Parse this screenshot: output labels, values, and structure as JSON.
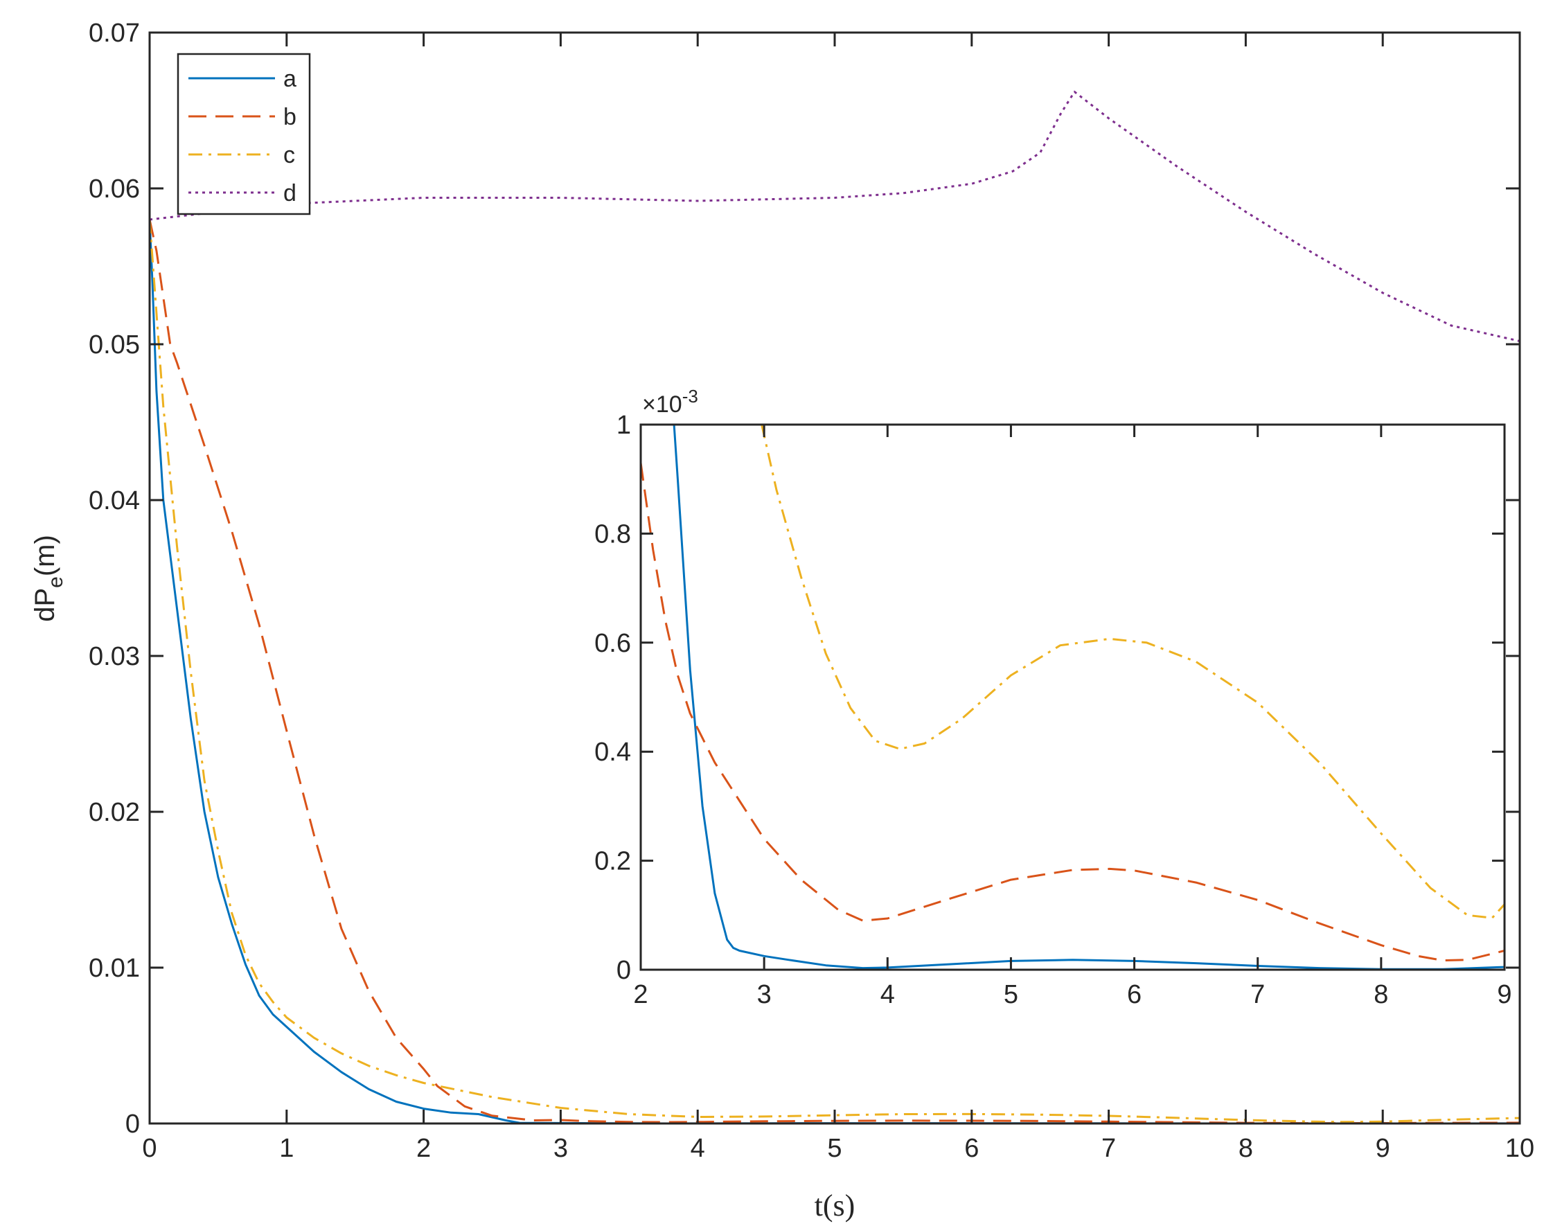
{
  "chart_data": {
    "type": "line",
    "xlabel": "t(s)",
    "ylabel_main": "dP",
    "ylabel_sub": "e",
    "ylabel_unit": "(m)",
    "xlim": [
      0,
      10
    ],
    "ylim": [
      0,
      0.07
    ],
    "xticks": [
      "0",
      "1",
      "2",
      "3",
      "4",
      "5",
      "6",
      "7",
      "8",
      "9",
      "10"
    ],
    "yticks": [
      "0",
      "0.01",
      "0.02",
      "0.03",
      "0.04",
      "0.05",
      "0.06",
      "0.07"
    ],
    "grid": false,
    "legend_position": "top-left",
    "series": [
      {
        "name": "a",
        "color": "#0072BD",
        "style": "solid",
        "x": [
          0,
          0.02,
          0.05,
          0.1,
          0.2,
          0.3,
          0.4,
          0.5,
          0.6,
          0.7,
          0.8,
          0.9,
          1.0,
          1.2,
          1.4,
          1.6,
          1.8,
          2.0,
          2.2,
          2.4,
          2.6,
          2.7,
          2.8,
          3.0,
          3.5,
          3.8,
          4.0,
          4.5,
          5.0,
          5.5,
          6.0,
          6.5,
          7.0,
          7.5,
          8.0,
          8.5,
          9.0,
          9.5,
          10
        ],
        "y": [
          0.058,
          0.054,
          0.047,
          0.04,
          0.033,
          0.026,
          0.02,
          0.0158,
          0.0128,
          0.0102,
          0.0082,
          0.007,
          0.0062,
          0.0046,
          0.0033,
          0.0022,
          0.0014,
          0.00095,
          0.0007,
          0.0006,
          0.0002,
          4e-05,
          3e-05,
          2.5e-05,
          1e-05,
          2e-06,
          5e-06,
          1.2e-05,
          1.6e-05,
          1.7e-05,
          1.6e-05,
          1.2e-05,
          8e-06,
          4e-06,
          1e-06,
          0.0,
          0.0,
          2e-06,
          5e-06
        ]
      },
      {
        "name": "b",
        "color": "#D95319",
        "style": "dashed",
        "x": [
          0,
          0.05,
          0.1,
          0.15,
          0.2,
          0.4,
          0.6,
          0.8,
          1.0,
          1.2,
          1.4,
          1.6,
          1.8,
          2.0,
          2.1,
          2.3,
          2.5,
          2.8,
          3.0,
          3.2,
          3.5,
          3.8,
          4.0,
          4.5,
          5.0,
          5.5,
          6.0,
          6.5,
          7.0,
          7.5,
          8.0,
          8.5,
          9.0,
          9.5,
          10
        ],
        "y": [
          0.058,
          0.056,
          0.053,
          0.05,
          0.0488,
          0.0435,
          0.038,
          0.032,
          0.0252,
          0.0185,
          0.0125,
          0.0085,
          0.0055,
          0.0035,
          0.0024,
          0.0011,
          0.0005,
          0.0002,
          0.00022,
          0.00015,
          0.0001,
          9e-05,
          0.0001,
          0.00014,
          0.00017,
          0.000183,
          0.00018,
          0.00016,
          0.00012,
          8e-05,
          4e-05,
          1.5e-05,
          2e-05,
          4e-05,
          5e-05
        ]
      },
      {
        "name": "c",
        "color": "#EDB120",
        "style": "dashdot",
        "x": [
          0,
          0.05,
          0.1,
          0.2,
          0.3,
          0.4,
          0.5,
          0.6,
          0.7,
          0.8,
          0.9,
          1.0,
          1.2,
          1.4,
          1.6,
          1.8,
          2.0,
          2.5,
          3.0,
          3.5,
          4.0,
          4.5,
          5.0,
          5.5,
          6.0,
          6.5,
          7.0,
          7.5,
          8.0,
          8.5,
          8.7,
          9.0,
          9.5,
          10
        ],
        "y": [
          0.058,
          0.052,
          0.046,
          0.037,
          0.029,
          0.022,
          0.0175,
          0.0135,
          0.0108,
          0.009,
          0.0078,
          0.0068,
          0.0055,
          0.0045,
          0.0037,
          0.0031,
          0.0026,
          0.0017,
          0.001,
          0.0006,
          0.00042,
          0.00045,
          0.00053,
          0.0006,
          0.000605,
          0.00057,
          0.00049,
          0.00036,
          0.00022,
          0.00012,
          0.0001,
          0.00012,
          0.00025,
          0.00035
        ]
      },
      {
        "name": "d",
        "color": "#7E2F8E",
        "style": "dotted",
        "x": [
          0,
          0.5,
          1,
          2,
          3,
          4,
          5,
          5.5,
          6,
          6.3,
          6.5,
          6.65,
          6.75,
          7.0,
          7.5,
          8.0,
          8.5,
          9.0,
          9.5,
          10
        ],
        "y": [
          0.058,
          0.0585,
          0.059,
          0.0594,
          0.0594,
          0.0592,
          0.0594,
          0.0597,
          0.0603,
          0.0611,
          0.0623,
          0.0648,
          0.0662,
          0.0645,
          0.0614,
          0.0585,
          0.0558,
          0.0533,
          0.0512,
          0.0502
        ]
      }
    ],
    "inset": {
      "xlim": [
        2,
        9
      ],
      "ylim": [
        0,
        1
      ],
      "multiplier": "×10",
      "multiplier_exp": "-3",
      "xticks": [
        "2",
        "3",
        "4",
        "5",
        "6",
        "7",
        "8",
        "9"
      ],
      "yticks": [
        "0",
        "0.2",
        "0.4",
        "0.6",
        "0.8",
        "1"
      ],
      "series": [
        {
          "name": "a",
          "color": "#0072BD",
          "style": "solid",
          "x": [
            2.27,
            2.3,
            2.4,
            2.5,
            2.6,
            2.7,
            2.75,
            2.8,
            3.0,
            3.2,
            3.5,
            3.8,
            4.0,
            4.5,
            5.0,
            5.5,
            6.0,
            6.5,
            7.0,
            7.5,
            8.0,
            8.5,
            9.0
          ],
          "y": [
            1.0,
            0.9,
            0.55,
            0.3,
            0.14,
            0.055,
            0.04,
            0.035,
            0.025,
            0.018,
            0.008,
            0.003,
            0.004,
            0.01,
            0.016,
            0.018,
            0.016,
            0.012,
            0.007,
            0.003,
            0.001,
            0.001,
            0.005
          ]
        },
        {
          "name": "b",
          "color": "#D95319",
          "style": "dashed",
          "x": [
            2.0,
            2.1,
            2.2,
            2.3,
            2.4,
            2.6,
            2.8,
            3.0,
            3.3,
            3.6,
            3.8,
            4.0,
            4.5,
            5.0,
            5.5,
            5.8,
            6.0,
            6.5,
            7.0,
            7.5,
            8.0,
            8.3,
            8.5,
            8.7,
            9.0
          ],
          "y": [
            0.93,
            0.77,
            0.64,
            0.54,
            0.47,
            0.38,
            0.31,
            0.24,
            0.165,
            0.11,
            0.09,
            0.094,
            0.13,
            0.165,
            0.183,
            0.185,
            0.182,
            0.16,
            0.128,
            0.085,
            0.045,
            0.025,
            0.017,
            0.018,
            0.035
          ]
        },
        {
          "name": "c",
          "color": "#EDB120",
          "style": "dashdot",
          "x": [
            2.98,
            3.1,
            3.3,
            3.5,
            3.7,
            3.9,
            4.1,
            4.3,
            4.6,
            5.0,
            5.4,
            5.8,
            6.1,
            6.5,
            7.0,
            7.5,
            8.0,
            8.4,
            8.7,
            8.9,
            9.0
          ],
          "y": [
            1.0,
            0.88,
            0.72,
            0.58,
            0.48,
            0.42,
            0.405,
            0.415,
            0.46,
            0.54,
            0.595,
            0.607,
            0.6,
            0.565,
            0.49,
            0.38,
            0.25,
            0.15,
            0.1,
            0.095,
            0.12
          ]
        }
      ]
    }
  }
}
